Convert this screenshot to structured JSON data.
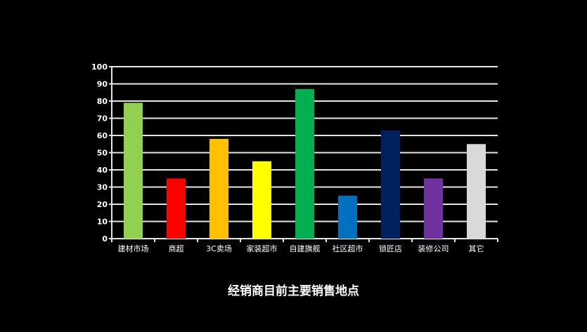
{
  "chart_data": {
    "type": "bar",
    "title": "经销商目前主要销售地点",
    "categories": [
      "建材市场",
      "商超",
      "3C卖场",
      "家装超市",
      "自建旗舰",
      "社区超市",
      "锁匠店",
      "装修公司",
      "其它"
    ],
    "values": [
      79,
      35,
      58,
      45,
      87,
      25,
      63,
      35,
      55
    ],
    "colors": [
      "#92d050",
      "#ff0000",
      "#ffc000",
      "#ffff00",
      "#00b050",
      "#0070c0",
      "#002060",
      "#7030a0",
      "#d9d9d9"
    ],
    "ylim": [
      0,
      100
    ],
    "yticks": [
      0,
      10,
      20,
      30,
      40,
      50,
      60,
      70,
      80,
      90,
      100
    ],
    "grid": true,
    "legend": "none"
  }
}
